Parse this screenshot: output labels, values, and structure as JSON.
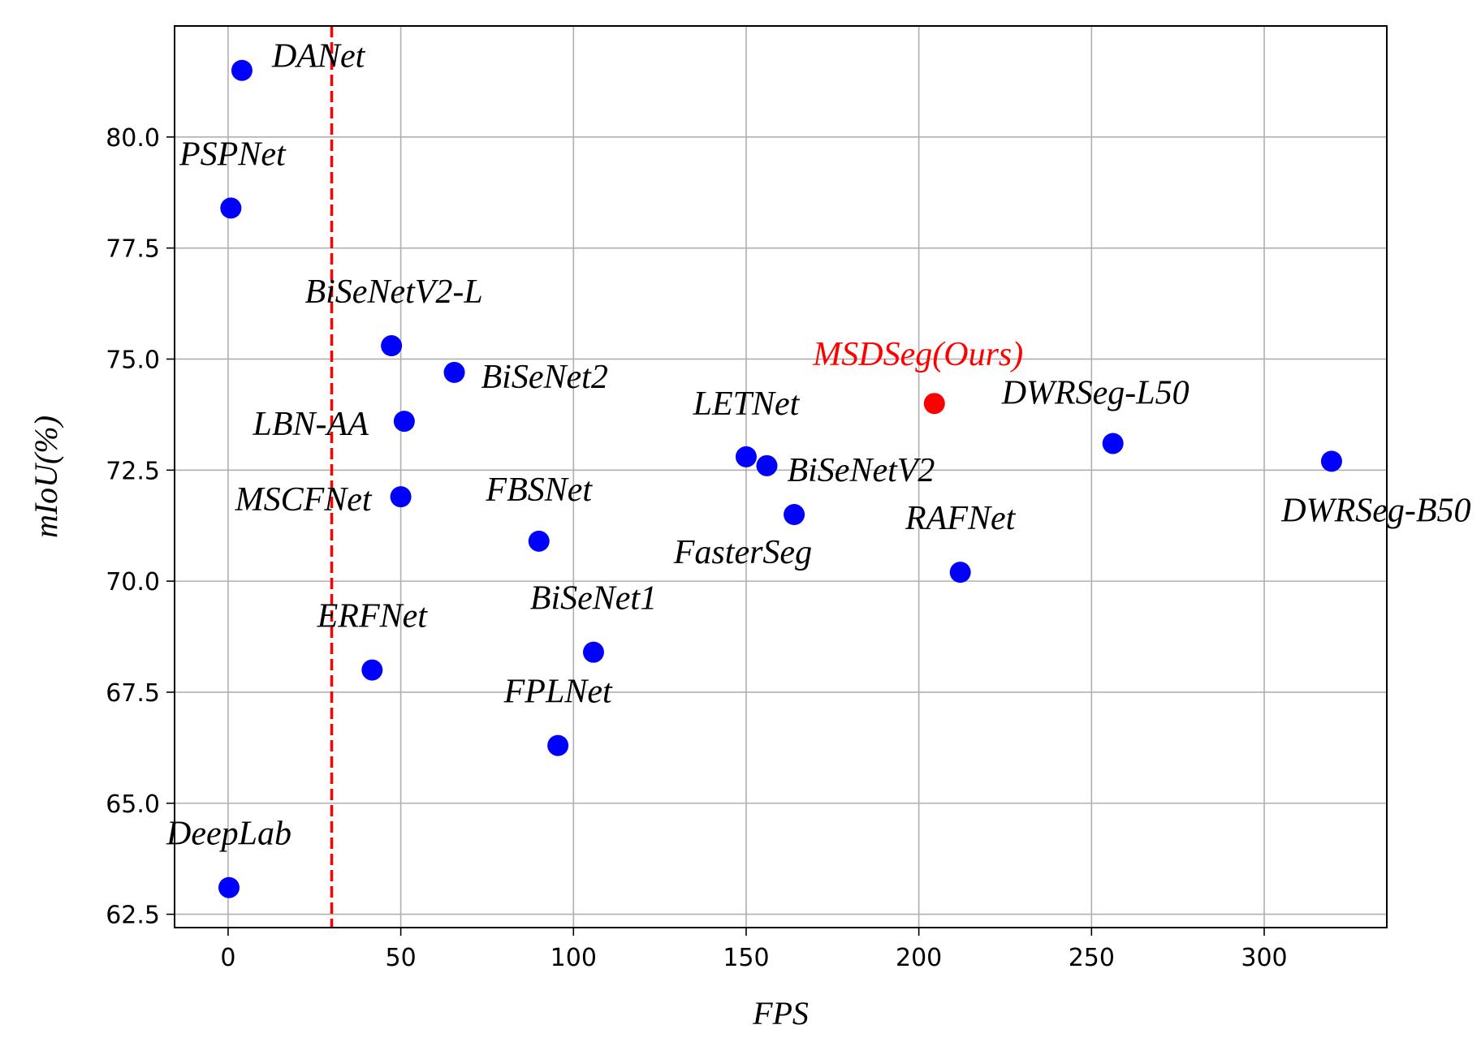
{
  "chart_data": {
    "type": "scatter",
    "xlabel": "FPS",
    "ylabel": "mIoU(%)",
    "xlim": [
      -15.5,
      335.5
    ],
    "ylim": [
      62.2,
      82.5
    ],
    "xticks": [
      "0",
      "50",
      "100",
      "150",
      "200",
      "250",
      "300"
    ],
    "yticks": [
      "62.5",
      "65.0",
      "67.5",
      "70.0",
      "72.5",
      "75.0",
      "77.5",
      "80.0"
    ],
    "grid": true,
    "reference_line": {
      "x": 30,
      "color": "#ff0000",
      "style": "dashed"
    },
    "colors": {
      "baseline": "#0000ff",
      "ours": "#ff0000"
    },
    "points": [
      {
        "label": "DANet",
        "x": 4,
        "y": 81.5,
        "highlight": false
      },
      {
        "label": "PSPNet",
        "x": 0.8,
        "y": 78.4,
        "highlight": false
      },
      {
        "label": "BiSeNetV2-L",
        "x": 47.3,
        "y": 75.3,
        "highlight": false
      },
      {
        "label": "BiSeNet2",
        "x": 65.5,
        "y": 74.7,
        "highlight": false
      },
      {
        "label": "LBN-AA",
        "x": 51,
        "y": 73.6,
        "highlight": false
      },
      {
        "label": "MSCFNet",
        "x": 50,
        "y": 71.9,
        "highlight": false
      },
      {
        "label": "FBSNet",
        "x": 90,
        "y": 70.9,
        "highlight": false
      },
      {
        "label": "ERFNet",
        "x": 41.7,
        "y": 68.0,
        "highlight": false
      },
      {
        "label": "BiSeNet1",
        "x": 105.8,
        "y": 68.4,
        "highlight": false
      },
      {
        "label": "FPLNet",
        "x": 95.5,
        "y": 66.3,
        "highlight": false
      },
      {
        "label": "DeepLab",
        "x": 0.25,
        "y": 63.1,
        "highlight": false
      },
      {
        "label": "LETNet",
        "x": 150,
        "y": 72.8,
        "highlight": false
      },
      {
        "label": "BiSeNetV2",
        "x": 156,
        "y": 72.6,
        "highlight": false
      },
      {
        "label": "FasterSeg",
        "x": 163.9,
        "y": 71.5,
        "highlight": false
      },
      {
        "label": "MSDSeg(Ours)",
        "x": 204.5,
        "y": 74.0,
        "highlight": true
      },
      {
        "label": "RAFNet",
        "x": 212,
        "y": 70.2,
        "highlight": false
      },
      {
        "label": "DWRSeg-L50",
        "x": 256.2,
        "y": 73.1,
        "highlight": false
      },
      {
        "label": "DWRSeg-B50",
        "x": 319.5,
        "y": 72.7,
        "highlight": false
      }
    ]
  }
}
